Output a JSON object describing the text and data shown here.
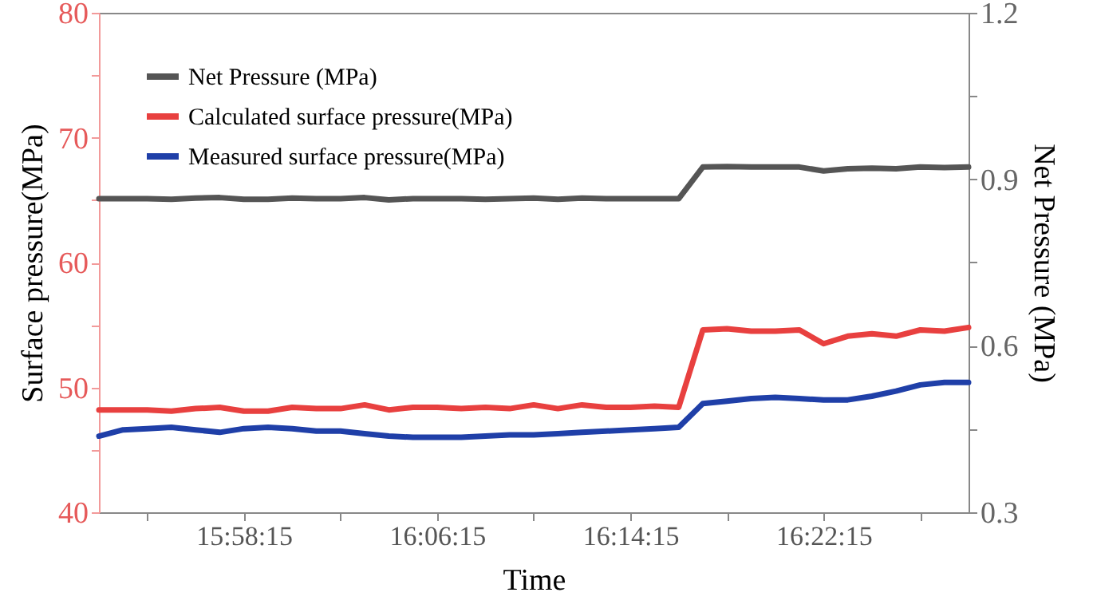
{
  "chart_data": {
    "type": "line",
    "xlabel": "Time",
    "ylabel": "Surface pressure(MPa)",
    "y2label": "Net Pressure (MPa)",
    "x": [
      15.870833,
      15.8875,
      15.904167,
      15.920833,
      15.9375,
      15.954167,
      15.970833,
      15.9875,
      16.004167,
      16.020833,
      16.0375,
      16.054167,
      16.070833,
      16.0875,
      16.104167,
      16.120833,
      16.1375,
      16.154167,
      16.170833,
      16.1875,
      16.204167,
      16.220833,
      16.2375,
      16.254167,
      16.270833,
      16.2875,
      16.304167,
      16.320833,
      16.3375,
      16.354167,
      16.370833,
      16.3875,
      16.404167,
      16.420833,
      16.4375,
      16.454167,
      16.470833
    ],
    "xlim": [
      15.870833,
      16.470833
    ],
    "xticks": [
      {
        "value": 15.904167,
        "label": null
      },
      {
        "value": 15.970833,
        "label": "15:58:15"
      },
      {
        "value": 16.0375,
        "label": null
      },
      {
        "value": 16.104167,
        "label": "16:06:15"
      },
      {
        "value": 16.170833,
        "label": null
      },
      {
        "value": 16.2375,
        "label": "16:14:15"
      },
      {
        "value": 16.304167,
        "label": null
      },
      {
        "value": 16.370833,
        "label": "16:22:15"
      },
      {
        "value": 16.4375,
        "label": null
      }
    ],
    "ylim": [
      40,
      80
    ],
    "yticks": [
      40,
      {
        "value": 45,
        "label": null
      },
      50,
      {
        "value": 55,
        "label": null
      },
      60,
      {
        "value": 65,
        "label": null
      },
      70,
      {
        "value": 75,
        "label": null
      },
      80
    ],
    "y2lim": [
      0.3,
      1.2
    ],
    "y2ticks": [
      0.3,
      {
        "value": 0.45,
        "label": null
      },
      0.6,
      {
        "value": 0.75,
        "label": null
      },
      0.9,
      {
        "value": 1.05,
        "label": null
      },
      1.2
    ],
    "legend": "top left",
    "grid": false,
    "marker": "none",
    "line_style": "solid",
    "series": [
      {
        "name": "Net Pressure (MPa)",
        "color": "#555555",
        "axis": "y2",
        "values": [
          0.865,
          0.865,
          0.865,
          0.864,
          0.866,
          0.867,
          0.864,
          0.864,
          0.866,
          0.865,
          0.865,
          0.867,
          0.863,
          0.865,
          0.865,
          0.865,
          0.864,
          0.865,
          0.866,
          0.864,
          0.866,
          0.865,
          0.865,
          0.865,
          0.865,
          0.922,
          0.923,
          0.922,
          0.922,
          0.922,
          0.915,
          0.919,
          0.92,
          0.919,
          0.922,
          0.921,
          0.922
        ]
      },
      {
        "name": "Calculated surface pressure(MPa)",
        "color": "#e8403f",
        "axis": "y",
        "values": [
          48.2,
          48.2,
          48.2,
          48.1,
          48.3,
          48.4,
          48.1,
          48.1,
          48.4,
          48.3,
          48.3,
          48.6,
          48.2,
          48.4,
          48.4,
          48.3,
          48.4,
          48.3,
          48.6,
          48.3,
          48.6,
          48.4,
          48.4,
          48.5,
          48.4,
          54.6,
          54.7,
          54.5,
          54.5,
          54.6,
          53.5,
          54.1,
          54.3,
          54.1,
          54.6,
          54.5,
          54.8
        ]
      },
      {
        "name": "Measured surface pressure(MPa)",
        "color": "#1f3fa8",
        "axis": "y",
        "values": [
          46.1,
          46.6,
          46.7,
          46.8,
          46.6,
          46.4,
          46.7,
          46.8,
          46.7,
          46.5,
          46.5,
          46.3,
          46.1,
          46.0,
          46.0,
          46.0,
          46.1,
          46.2,
          46.2,
          46.3,
          46.4,
          46.5,
          46.6,
          46.7,
          46.8,
          48.7,
          48.9,
          49.1,
          49.2,
          49.1,
          49.0,
          49.0,
          49.3,
          49.7,
          50.2,
          50.4,
          50.4
        ]
      }
    ]
  }
}
